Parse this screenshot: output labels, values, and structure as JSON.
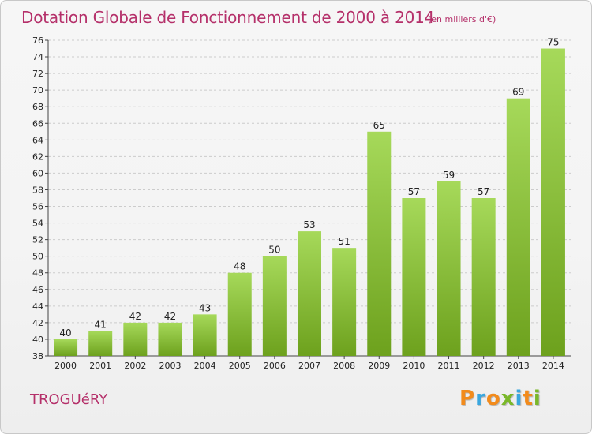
{
  "header": {
    "title": "Dotation Globale de Fonctionnement de 2000 à 2014",
    "subtitle": "(en milliers d'€)"
  },
  "footer": {
    "town": "TROGUéRY",
    "brand_letters": [
      "P",
      "r",
      "o",
      "x",
      "i",
      "t",
      "i"
    ],
    "brand_colors": [
      "#f28b1c",
      "#3aa7df",
      "#f28b1c",
      "#7ab829",
      "#3aa7df",
      "#f28b1c",
      "#7ab829"
    ]
  },
  "colors": {
    "title": "#b5306a",
    "bar_light": "#a6d95a",
    "bar_dark": "#6da11d",
    "grid": "#cccccc"
  },
  "chart_data": {
    "type": "bar",
    "title": "Dotation Globale de Fonctionnement de 2000 à 2014",
    "subtitle": "(en milliers d'€)",
    "xlabel": "",
    "ylabel": "",
    "categories": [
      "2000",
      "2001",
      "2002",
      "2003",
      "2004",
      "2005",
      "2006",
      "2007",
      "2008",
      "2009",
      "2010",
      "2011",
      "2012",
      "2013",
      "2014"
    ],
    "values": [
      40,
      41,
      42,
      42,
      43,
      48,
      50,
      53,
      51,
      65,
      57,
      59,
      57,
      69,
      75
    ],
    "ylim": [
      38,
      76
    ],
    "yticks": [
      38,
      40,
      42,
      44,
      46,
      48,
      50,
      52,
      54,
      56,
      58,
      60,
      62,
      64,
      66,
      68,
      70,
      72,
      74,
      76
    ],
    "grid": true,
    "legend": "none"
  }
}
